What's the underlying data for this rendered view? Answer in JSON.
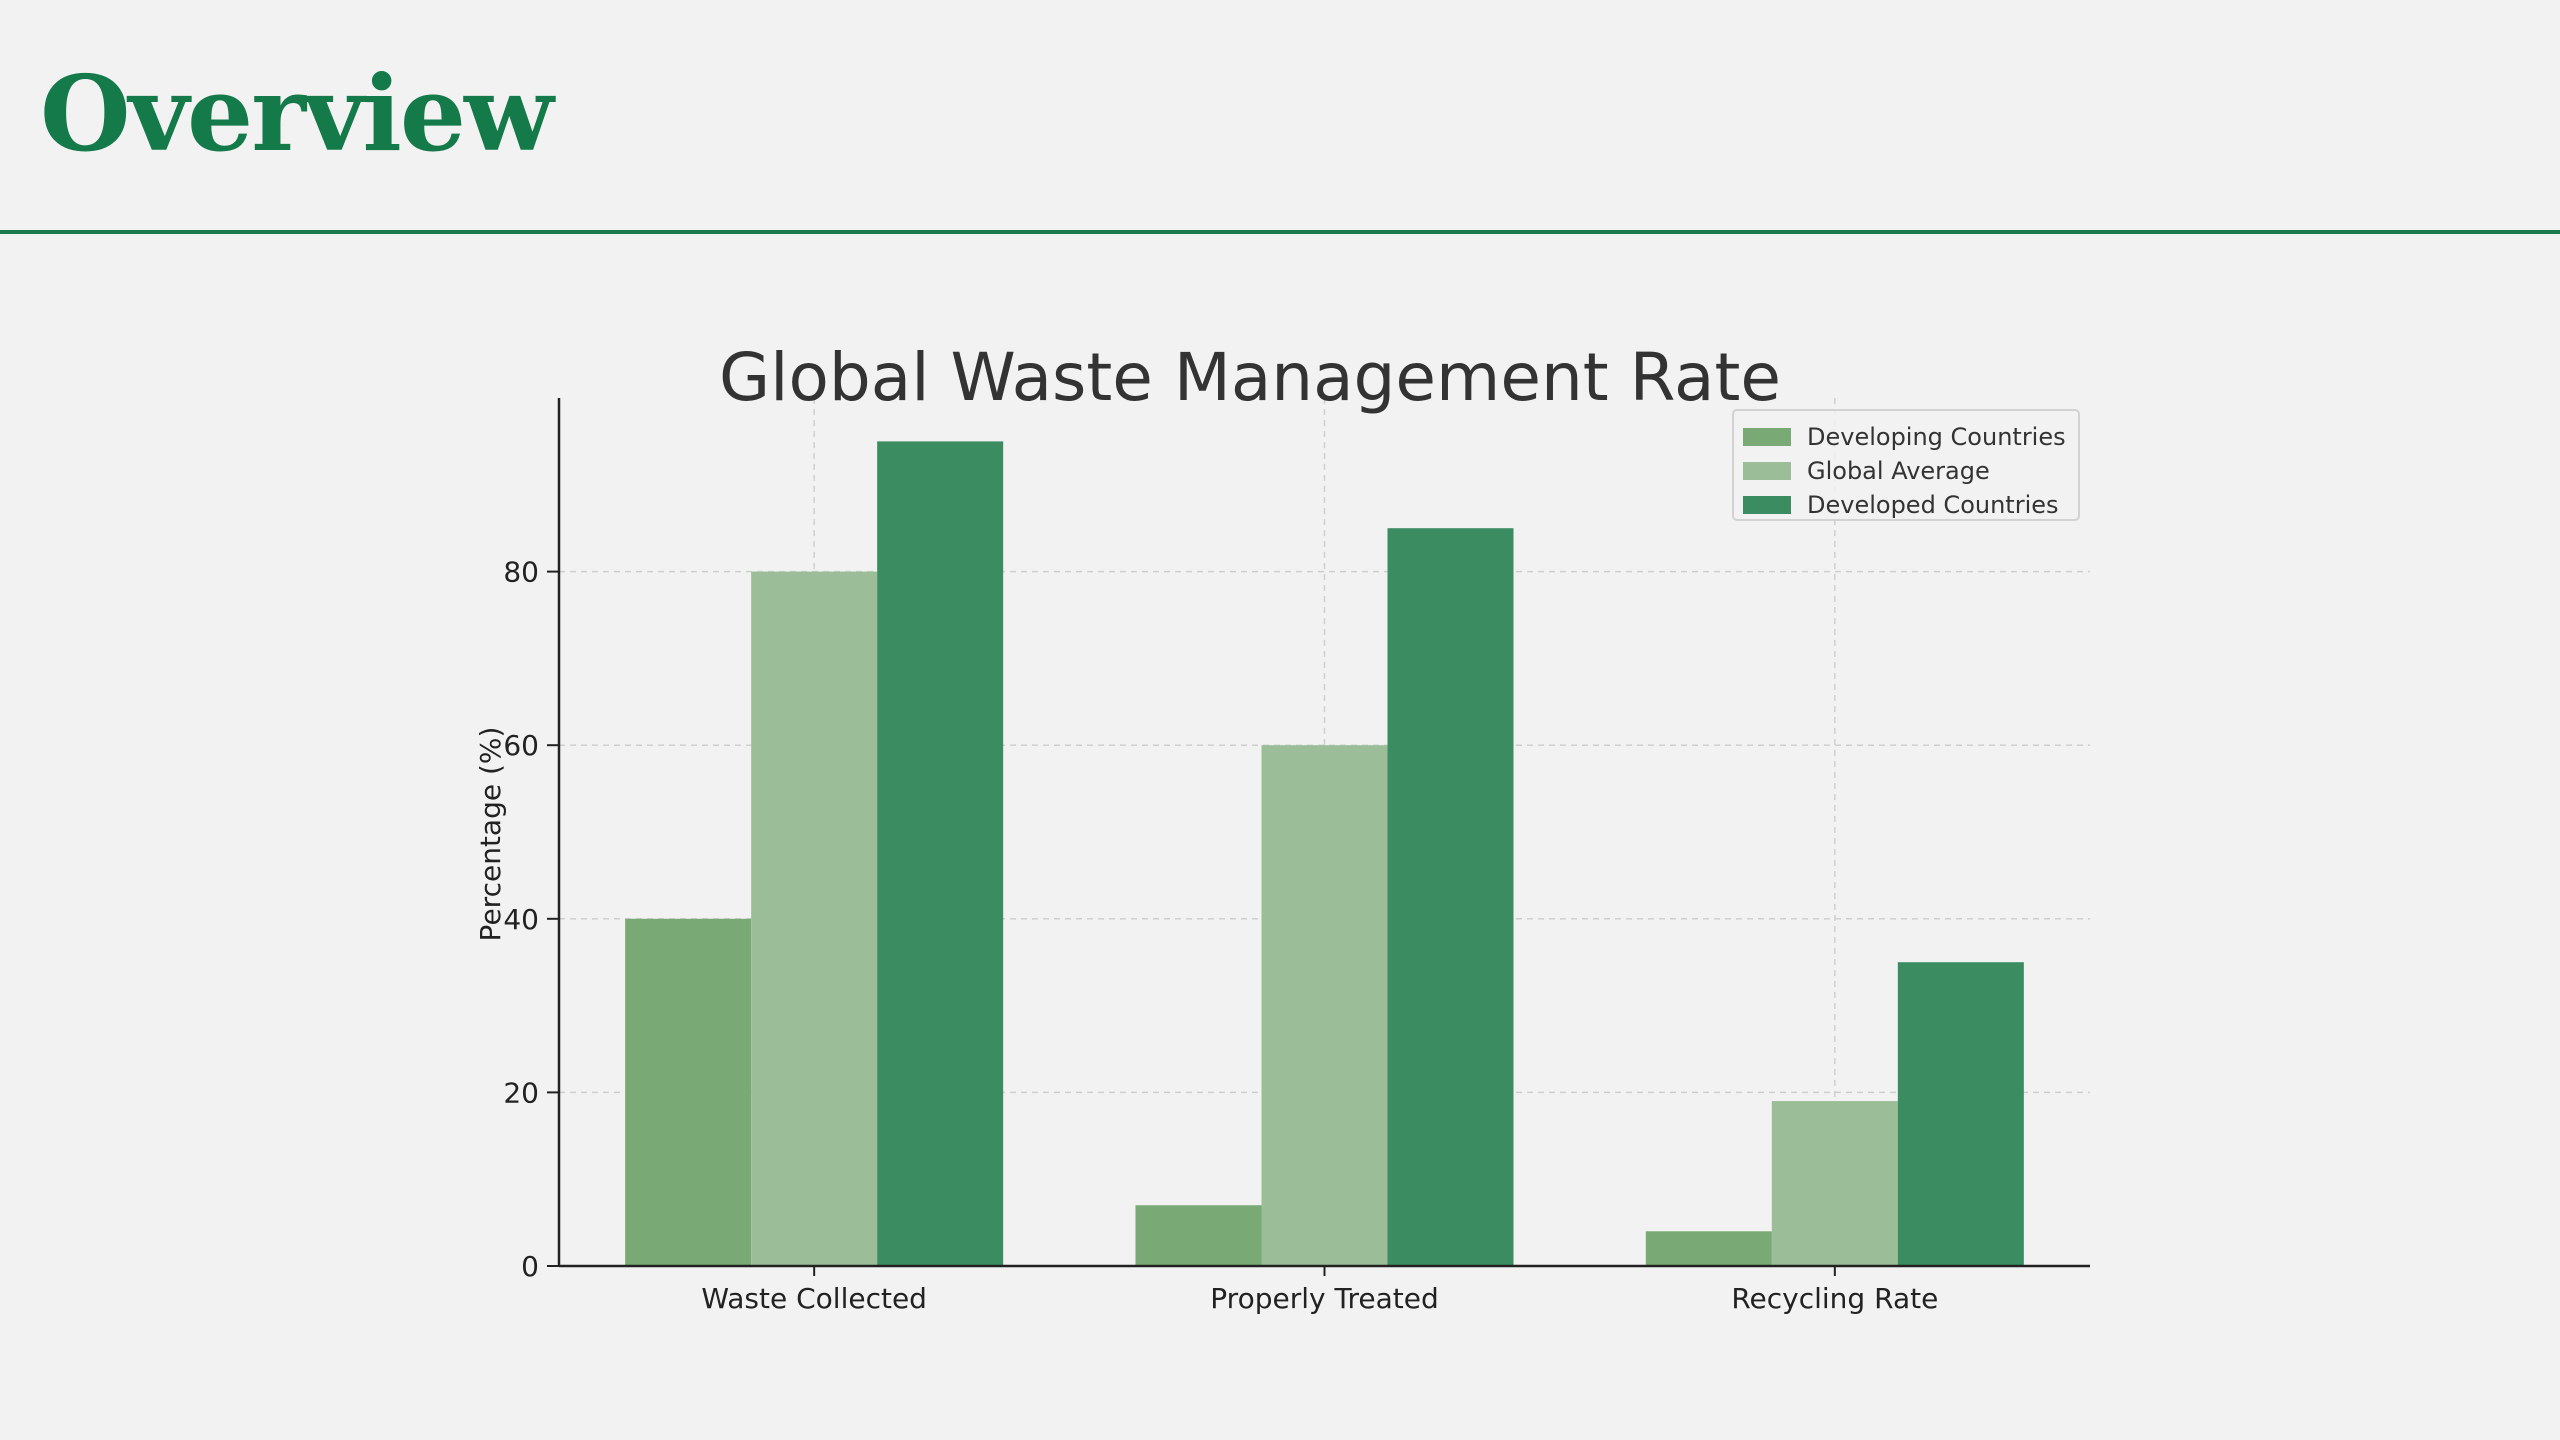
{
  "page": {
    "title": "Overview",
    "title_color": "#147a4a",
    "rule_color": "#1c7a4c"
  },
  "chart_data": {
    "type": "bar",
    "title": "Global Waste Management Rate",
    "xlabel": "",
    "ylabel": "Percentage (%)",
    "categories": [
      "Waste Collected",
      "Properly Treated",
      "Recycling Rate"
    ],
    "series": [
      {
        "name": "Developing Countries",
        "values": [
          40,
          7,
          4
        ],
        "color": "#79a974"
      },
      {
        "name": "Global Average",
        "values": [
          80,
          60,
          19
        ],
        "color": "#9bbe98"
      },
      {
        "name": "Developed Countries",
        "values": [
          95,
          85,
          35
        ],
        "color": "#3b8c61"
      }
    ],
    "ylim": [
      0,
      100
    ],
    "yticks": [
      0,
      20,
      40,
      60,
      80
    ],
    "grid": true,
    "legend_position": "top-right"
  }
}
